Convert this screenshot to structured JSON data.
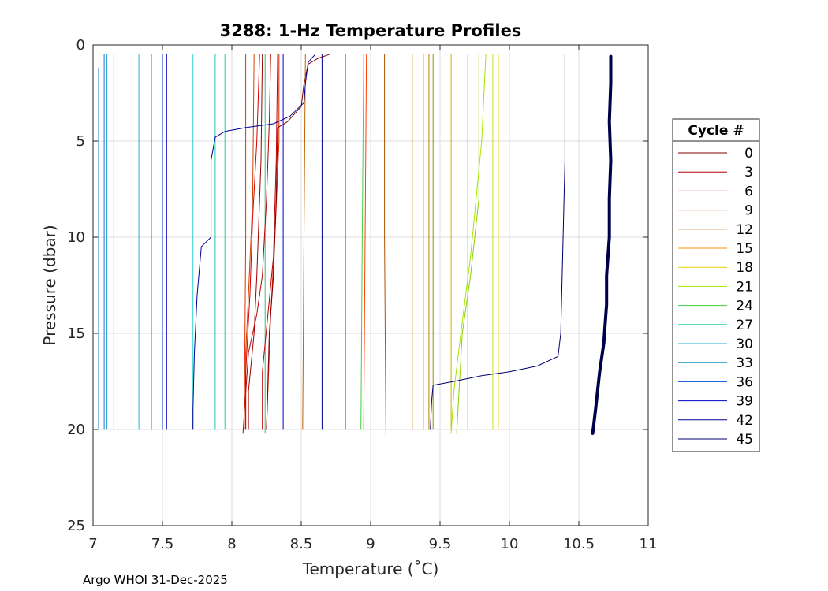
{
  "chart_data": {
    "type": "line",
    "title": "3288: 1-Hz Temperature Profiles",
    "xlabel": "Temperature (˚C)",
    "ylabel": "Pressure (dbar)",
    "xlim": [
      7,
      11
    ],
    "ylim": [
      0,
      25
    ],
    "y_reversed": true,
    "grid": true,
    "xticks": [
      7,
      7.5,
      8,
      8.5,
      9,
      9.5,
      10,
      10.5,
      11
    ],
    "xtick_labels": [
      "7",
      "7.5",
      "8",
      "8.5",
      "9",
      "9.5",
      "10",
      "10.5",
      "11"
    ],
    "yticks": [
      0,
      5,
      10,
      15,
      20,
      25
    ],
    "ytick_labels": [
      "0",
      "5",
      "10",
      "15",
      "20",
      "25"
    ],
    "legend": {
      "title": "Cycle #",
      "placement": "outside-right"
    },
    "series": [
      {
        "name": "0",
        "color": "#800000",
        "width": 1,
        "points": [
          [
            8.7,
            0.5
          ],
          [
            8.62,
            0.7
          ],
          [
            8.55,
            1.0
          ],
          [
            8.52,
            2.0
          ],
          [
            8.5,
            3.2
          ],
          [
            8.4,
            4.0
          ],
          [
            8.33,
            4.3
          ],
          [
            8.32,
            8.0
          ],
          [
            8.3,
            12.0
          ],
          [
            8.27,
            15.0
          ],
          [
            8.25,
            20.0
          ]
        ]
      },
      {
        "name": "3",
        "color": "#b40000",
        "width": 1,
        "points": [
          [
            8.28,
            0.5
          ],
          [
            8.27,
            4.0
          ],
          [
            8.25,
            8.0
          ],
          [
            8.22,
            12.0
          ],
          [
            8.18,
            14.0
          ],
          [
            8.12,
            16.0
          ],
          [
            8.08,
            20.2
          ]
        ]
      },
      {
        "name": "6",
        "color": "#d40000",
        "width": 1,
        "points": [
          [
            8.2,
            0.5
          ],
          [
            8.18,
            5.0
          ],
          [
            8.15,
            9.0
          ],
          [
            8.13,
            13.0
          ],
          [
            8.1,
            17.0
          ],
          [
            8.1,
            20.0
          ]
        ]
      },
      {
        "name": "9",
        "color": "#e63000",
        "width": 1,
        "points": [
          [
            8.1,
            0.5
          ],
          [
            8.1,
            10.0
          ],
          [
            8.09,
            20.0
          ]
        ]
      },
      {
        "name": "12",
        "color": "#c06000",
        "width": 1,
        "points": [
          [
            8.53,
            0.5
          ],
          [
            8.52,
            10.0
          ],
          [
            8.51,
            20.0
          ]
        ]
      },
      {
        "name": "15",
        "color": "#ff8c00",
        "width": 1,
        "points": [
          [
            9.7,
            0.5
          ],
          [
            9.7,
            10.0
          ],
          [
            9.7,
            20.0
          ]
        ]
      },
      {
        "name": "18",
        "color": "#e6d200",
        "width": 1,
        "points": [
          [
            9.92,
            0.5
          ],
          [
            9.92,
            10.0
          ],
          [
            9.92,
            20.0
          ]
        ]
      },
      {
        "name": "21",
        "color": "#a6e600",
        "width": 1,
        "points": [
          [
            9.83,
            0.5
          ],
          [
            9.8,
            5.0
          ],
          [
            9.72,
            11.0
          ],
          [
            9.65,
            15.0
          ],
          [
            9.6,
            18.0
          ],
          [
            9.58,
            20.2
          ]
        ]
      },
      {
        "name": "24",
        "color": "#40d040",
        "width": 1,
        "points": [
          [
            8.95,
            0.5
          ],
          [
            8.94,
            10.0
          ],
          [
            8.93,
            20.0
          ]
        ]
      },
      {
        "name": "27",
        "color": "#20d0a0",
        "width": 1,
        "points": [
          [
            7.95,
            0.5
          ],
          [
            7.95,
            10.0
          ],
          [
            7.95,
            20.0
          ]
        ]
      },
      {
        "name": "30",
        "color": "#20b4d4",
        "width": 1,
        "points": [
          [
            7.33,
            0.5
          ],
          [
            7.33,
            10.0
          ],
          [
            7.33,
            20.0
          ]
        ]
      },
      {
        "name": "33",
        "color": "#1090c8",
        "width": 1,
        "points": [
          [
            7.15,
            0.5
          ],
          [
            7.15,
            10.0
          ],
          [
            7.15,
            20.0
          ]
        ]
      },
      {
        "name": "36",
        "color": "#0050d0",
        "width": 1,
        "points": [
          [
            7.42,
            0.5
          ],
          [
            7.42,
            10.0
          ],
          [
            7.42,
            20.0
          ]
        ]
      },
      {
        "name": "39",
        "color": "#0000c8",
        "width": 1,
        "points": [
          [
            7.53,
            0.5
          ],
          [
            7.53,
            10.0
          ],
          [
            7.53,
            20.0
          ]
        ]
      },
      {
        "name": "42",
        "color": "#00009a",
        "width": 1,
        "points": [
          [
            8.6,
            0.5
          ],
          [
            8.55,
            0.9
          ],
          [
            8.53,
            2.0
          ],
          [
            8.52,
            3.0
          ],
          [
            8.42,
            3.7
          ],
          [
            8.3,
            4.1
          ],
          [
            8.1,
            4.3
          ],
          [
            7.95,
            4.5
          ],
          [
            7.88,
            4.8
          ],
          [
            7.85,
            6.0
          ],
          [
            7.85,
            10.0
          ],
          [
            7.78,
            10.5
          ],
          [
            7.75,
            13.0
          ],
          [
            7.73,
            16.0
          ],
          [
            7.72,
            19.0
          ],
          [
            7.72,
            20.0
          ]
        ]
      },
      {
        "name": "45",
        "color": "#000070",
        "width": 1,
        "points": [
          [
            10.4,
            0.5
          ],
          [
            10.4,
            6.0
          ],
          [
            10.38,
            12.0
          ],
          [
            10.37,
            15.0
          ],
          [
            10.35,
            16.2
          ],
          [
            10.2,
            16.7
          ],
          [
            10.0,
            17.0
          ],
          [
            9.8,
            17.2
          ],
          [
            9.6,
            17.5
          ],
          [
            9.45,
            17.7
          ],
          [
            9.44,
            18.5
          ],
          [
            9.43,
            20.0
          ]
        ]
      }
    ],
    "extra_series": [
      {
        "color": "#00004a",
        "width": 4,
        "points": [
          [
            10.73,
            0.6
          ],
          [
            10.73,
            2.0
          ],
          [
            10.72,
            4.0
          ],
          [
            10.73,
            6.0
          ],
          [
            10.72,
            8.0
          ],
          [
            10.72,
            10.0
          ],
          [
            10.7,
            12.0
          ],
          [
            10.7,
            13.5
          ],
          [
            10.69,
            14.5
          ],
          [
            10.68,
            15.5
          ],
          [
            10.65,
            17.0
          ],
          [
            10.62,
            19.0
          ],
          [
            10.6,
            20.2
          ]
        ]
      },
      {
        "color": "#ff3c00",
        "width": 1,
        "points": [
          [
            8.97,
            0.5
          ],
          [
            8.96,
            10.0
          ],
          [
            8.95,
            20.0
          ]
        ]
      },
      {
        "color": "#b05000",
        "width": 1,
        "points": [
          [
            9.1,
            0.5
          ],
          [
            9.1,
            10.0
          ],
          [
            9.11,
            20.3
          ]
        ]
      },
      {
        "color": "#c08000",
        "width": 1,
        "points": [
          [
            9.42,
            0.5
          ],
          [
            9.42,
            10.0
          ],
          [
            9.42,
            20.0
          ]
        ]
      },
      {
        "color": "#d08000",
        "width": 1,
        "points": [
          [
            9.3,
            0.5
          ],
          [
            9.3,
            10.0
          ],
          [
            9.3,
            20.0
          ]
        ]
      },
      {
        "color": "#909000",
        "width": 1,
        "points": [
          [
            9.45,
            0.5
          ],
          [
            9.45,
            10.0
          ],
          [
            9.45,
            20.0
          ]
        ]
      },
      {
        "color": "#d0b000",
        "width": 1,
        "points": [
          [
            9.58,
            0.5
          ],
          [
            9.58,
            10.0
          ],
          [
            9.58,
            20.0
          ]
        ]
      },
      {
        "color": "#c8e020",
        "width": 1,
        "points": [
          [
            9.88,
            0.5
          ],
          [
            9.88,
            10.0
          ],
          [
            9.88,
            20.0
          ]
        ]
      },
      {
        "color": "#90d000",
        "width": 1,
        "points": [
          [
            9.78,
            0.5
          ],
          [
            9.78,
            8.0
          ],
          [
            9.72,
            12.0
          ],
          [
            9.66,
            15.0
          ],
          [
            9.62,
            20.2
          ]
        ]
      },
      {
        "color": "#60d020",
        "width": 1,
        "points": [
          [
            9.38,
            0.5
          ],
          [
            9.38,
            10.0
          ],
          [
            9.38,
            20.0
          ]
        ]
      },
      {
        "color": "#30c060",
        "width": 1,
        "points": [
          [
            8.82,
            0.5
          ],
          [
            8.82,
            10.0
          ],
          [
            8.82,
            20.0
          ]
        ]
      },
      {
        "color": "#30c080",
        "width": 1,
        "points": [
          [
            8.24,
            0.5
          ],
          [
            8.24,
            10.0
          ],
          [
            8.24,
            20.2
          ]
        ]
      },
      {
        "color": "#20c8b0",
        "width": 1,
        "points": [
          [
            7.88,
            0.5
          ],
          [
            7.88,
            10.0
          ],
          [
            7.88,
            20.0
          ]
        ]
      },
      {
        "color": "#30d4d0",
        "width": 1,
        "points": [
          [
            7.72,
            0.5
          ],
          [
            7.72,
            10.0
          ],
          [
            7.72,
            20.0
          ]
        ]
      },
      {
        "color": "#20a0d0",
        "width": 1,
        "points": [
          [
            7.1,
            0.5
          ],
          [
            7.1,
            10.0
          ],
          [
            7.1,
            20.0
          ]
        ]
      },
      {
        "color": "#1870c0",
        "width": 1,
        "points": [
          [
            7.04,
            1.2
          ],
          [
            7.04,
            10.0
          ],
          [
            7.04,
            20.0
          ]
        ]
      },
      {
        "color": "#1878d0",
        "width": 1,
        "points": [
          [
            7.08,
            0.5
          ],
          [
            7.08,
            10.0
          ],
          [
            7.08,
            20.0
          ]
        ]
      },
      {
        "color": "#0030c0",
        "width": 1,
        "points": [
          [
            7.5,
            0.5
          ],
          [
            7.5,
            10.0
          ],
          [
            7.5,
            20.0
          ]
        ]
      },
      {
        "color": "#0000d8",
        "width": 1,
        "points": [
          [
            8.37,
            0.5
          ],
          [
            8.37,
            10.0
          ],
          [
            8.37,
            20.0
          ]
        ]
      },
      {
        "color": "#000090",
        "width": 1,
        "points": [
          [
            8.65,
            0.5
          ],
          [
            8.65,
            10.0
          ],
          [
            8.65,
            20.0
          ]
        ]
      },
      {
        "color": "#c00000",
        "width": 1,
        "points": [
          [
            8.33,
            0.5
          ],
          [
            8.32,
            6.0
          ],
          [
            8.3,
            11.0
          ],
          [
            8.26,
            14.0
          ],
          [
            8.22,
            17.0
          ],
          [
            8.22,
            20.0
          ]
        ]
      },
      {
        "color": "#e02000",
        "width": 1,
        "points": [
          [
            8.34,
            0.5
          ],
          [
            8.34,
            5.0
          ],
          [
            8.31,
            10.0
          ],
          [
            8.28,
            14.0
          ],
          [
            8.25,
            20.0
          ]
        ]
      },
      {
        "color": "#a00000",
        "width": 1,
        "points": [
          [
            8.22,
            0.5
          ],
          [
            8.21,
            6.0
          ],
          [
            8.18,
            12.0
          ],
          [
            8.16,
            15.0
          ],
          [
            8.12,
            18.0
          ],
          [
            8.12,
            20.0
          ]
        ]
      },
      {
        "color": "#d04000",
        "width": 1,
        "points": [
          [
            8.16,
            0.5
          ],
          [
            8.15,
            8.0
          ],
          [
            8.12,
            13.0
          ],
          [
            8.1,
            16.0
          ],
          [
            8.1,
            20.0
          ]
        ]
      }
    ]
  },
  "footer": {
    "text": "Argo WHOI 31-Dec-2025"
  }
}
